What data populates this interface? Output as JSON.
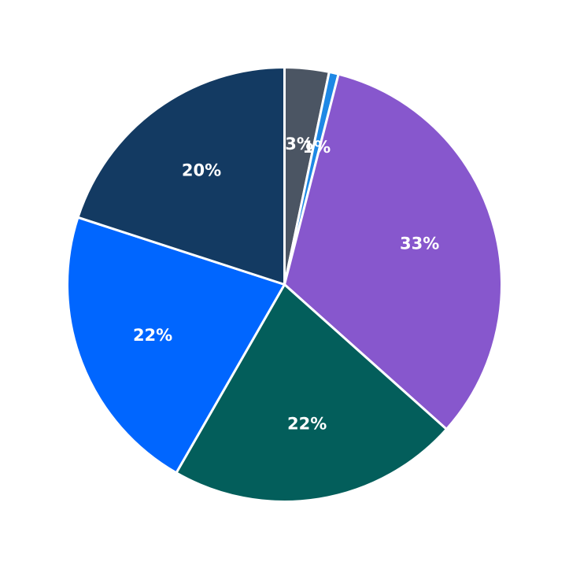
{
  "chart_data": {
    "type": "pie",
    "title": "",
    "start_angle_deg": 90,
    "direction": "clockwise",
    "slices": [
      {
        "value": 3.3,
        "label": "3%",
        "color": "#4B5563"
      },
      {
        "value": 0.7,
        "label": "1%",
        "color": "#1E88E5"
      },
      {
        "value": 32.6,
        "label": "33%",
        "color": "#8757CD"
      },
      {
        "value": 21.7,
        "label": "22%",
        "color": "#035E5B"
      },
      {
        "value": 21.7,
        "label": "22%",
        "color": "#0066FF"
      },
      {
        "value": 20.0,
        "label": "20%",
        "color": "#133A62"
      }
    ]
  }
}
